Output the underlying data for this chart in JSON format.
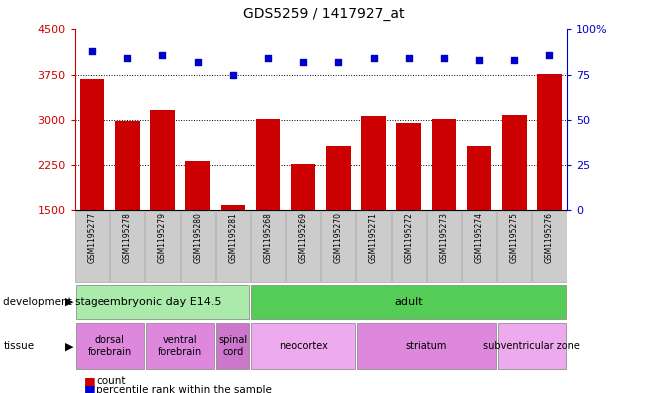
{
  "title": "GDS5259 / 1417927_at",
  "samples": [
    "GSM1195277",
    "GSM1195278",
    "GSM1195279",
    "GSM1195280",
    "GSM1195281",
    "GSM1195268",
    "GSM1195269",
    "GSM1195270",
    "GSM1195271",
    "GSM1195272",
    "GSM1195273",
    "GSM1195274",
    "GSM1195275",
    "GSM1195276"
  ],
  "bar_values": [
    3680,
    2980,
    3160,
    2320,
    1580,
    3010,
    2270,
    2560,
    3060,
    2940,
    3020,
    2560,
    3080,
    3760
  ],
  "dot_values": [
    88,
    84,
    86,
    82,
    75,
    84,
    82,
    82,
    84,
    84,
    84,
    83,
    83,
    86
  ],
  "bar_color": "#cc0000",
  "dot_color": "#0000cc",
  "ylim_left": [
    1500,
    4500
  ],
  "ylim_right": [
    0,
    100
  ],
  "yticks_left": [
    1500,
    2250,
    3000,
    3750,
    4500
  ],
  "yticks_right": [
    0,
    25,
    50,
    75,
    100
  ],
  "ytick_labels_right": [
    "0",
    "25",
    "50",
    "75",
    "100%"
  ],
  "grid_lines": [
    2250,
    3000,
    3750
  ],
  "dev_stage_label": "development stage",
  "tissue_label": "tissue",
  "dev_stages": [
    {
      "label": "embryonic day E14.5",
      "start": 0,
      "end": 4,
      "color": "#aaeaaa"
    },
    {
      "label": "adult",
      "start": 5,
      "end": 13,
      "color": "#55cc55"
    }
  ],
  "tissues": [
    {
      "label": "dorsal\nforebrain",
      "start": 0,
      "end": 1,
      "color": "#dd88dd"
    },
    {
      "label": "ventral\nforebrain",
      "start": 2,
      "end": 3,
      "color": "#dd88dd"
    },
    {
      "label": "spinal\ncord",
      "start": 4,
      "end": 4,
      "color": "#cc77cc"
    },
    {
      "label": "neocortex",
      "start": 5,
      "end": 7,
      "color": "#eeaaee"
    },
    {
      "label": "striatum",
      "start": 8,
      "end": 11,
      "color": "#dd88dd"
    },
    {
      "label": "subventricular zone",
      "start": 12,
      "end": 13,
      "color": "#eeaaee"
    }
  ],
  "legend_count_label": "count",
  "legend_pct_label": "percentile rank within the sample",
  "sample_box_color": "#cccccc",
  "sample_box_edge": "#aaaaaa"
}
